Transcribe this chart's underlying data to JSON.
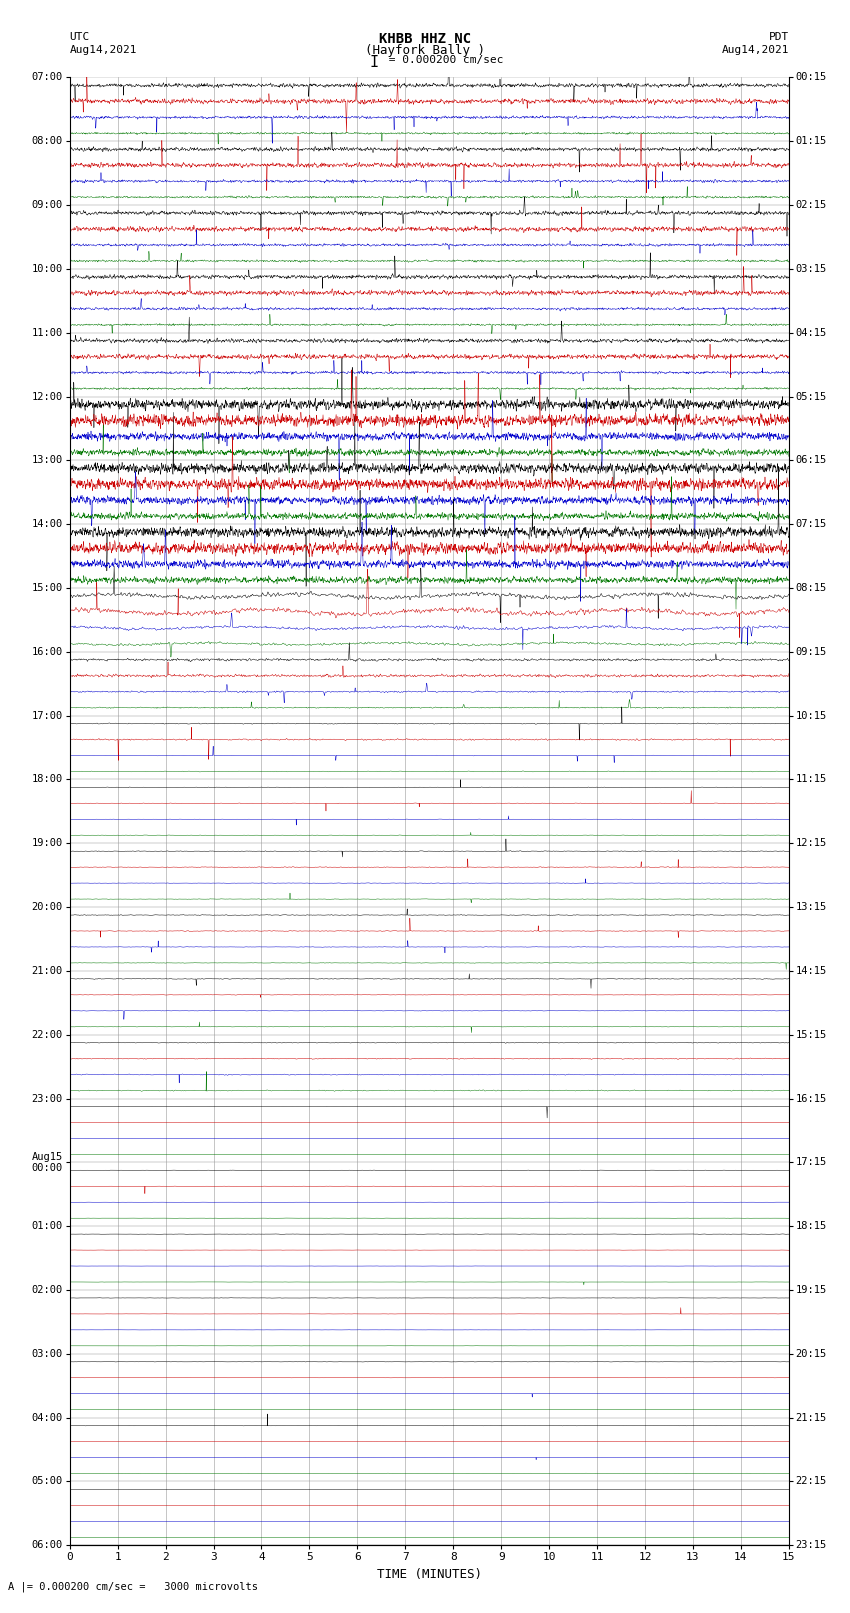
{
  "title_line1": "KHBB HHZ NC",
  "title_line2": "(Hayfork Bally )",
  "scale_label": "I = 0.000200 cm/sec",
  "scale_label2": "A |= 0.000200 cm/sec =   3000 microvolts",
  "utc_label": "UTC",
  "utc_date": "Aug14,2021",
  "pdt_label": "PDT",
  "pdt_date": "Aug14,2021",
  "xlabel": "TIME (MINUTES)",
  "n_rows": 23,
  "x_min": 0,
  "x_max": 15,
  "bg_color": "#ffffff",
  "grid_color": "#999999",
  "col_black": "#000000",
  "col_red": "#cc0000",
  "col_blue": "#0000cc",
  "col_green": "#007700",
  "right_labels": [
    "00:15",
    "01:15",
    "02:15",
    "03:15",
    "04:15",
    "05:15",
    "06:15",
    "07:15",
    "08:15",
    "09:15",
    "10:15",
    "11:15",
    "12:15",
    "13:15",
    "14:15",
    "15:15",
    "16:15",
    "17:15",
    "18:15",
    "19:15",
    "20:15",
    "21:15",
    "22:15",
    "23:15"
  ],
  "left_labels": [
    "07:00",
    "08:00",
    "09:00",
    "10:00",
    "11:00",
    "12:00",
    "13:00",
    "14:00",
    "15:00",
    "16:00",
    "17:00",
    "18:00",
    "19:00",
    "20:00",
    "21:00",
    "22:00",
    "23:00",
    "Aug15\n00:00",
    "01:00",
    "02:00",
    "03:00",
    "04:00",
    "05:00",
    "06:00"
  ]
}
